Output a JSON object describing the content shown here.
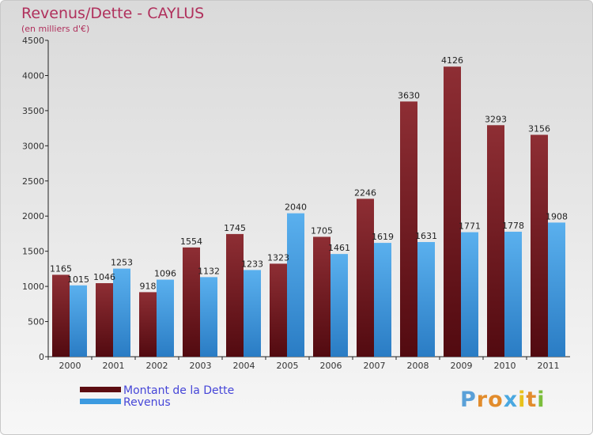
{
  "chart_data": {
    "type": "bar",
    "title": "Revenus/Dette - CAYLUS",
    "subtitle": "(en milliers d'€)",
    "categories": [
      "2000",
      "2001",
      "2002",
      "2003",
      "2004",
      "2005",
      "2006",
      "2007",
      "2008",
      "2009",
      "2010",
      "2011"
    ],
    "series": [
      {
        "name": "Montant de la Dette",
        "color": "#7a1c22",
        "values": [
          1165,
          1046,
          918,
          1554,
          1745,
          1323,
          1705,
          2246,
          3630,
          4126,
          3293,
          3156
        ]
      },
      {
        "name": "Revenus",
        "color": "#3c9ae0",
        "values": [
          1015,
          1253,
          1096,
          1132,
          1233,
          2040,
          1461,
          1619,
          1631,
          1771,
          1778,
          1908
        ]
      }
    ],
    "ylim": [
      0,
      4500
    ],
    "yticks": [
      0,
      500,
      1000,
      1500,
      2000,
      2500,
      3000,
      3500,
      4000,
      4500
    ],
    "grid": false,
    "legend_position": "bottom-left"
  },
  "logo": {
    "letters": [
      "P",
      "r",
      "o",
      "x",
      "i",
      "t",
      "i"
    ],
    "colors": [
      "#5aa0d8",
      "#e28c2c",
      "#e28c2c",
      "#4aa8e0",
      "#e8c21c",
      "#e28c2c",
      "#7cbe3c"
    ]
  }
}
